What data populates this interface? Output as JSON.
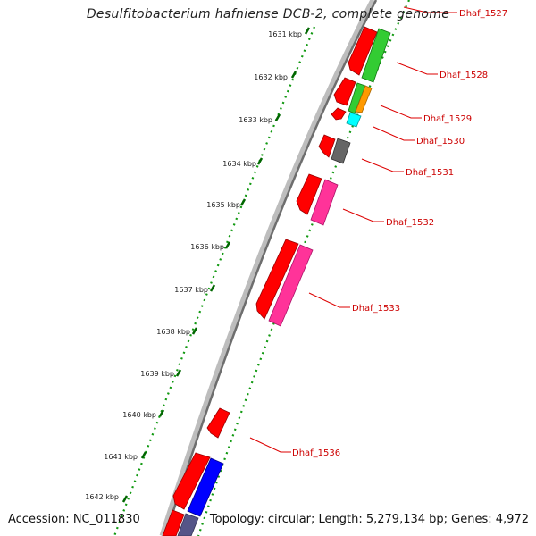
{
  "title": "Desulfitobacterium hafniense DCB-2, complete genome",
  "accession": "Accession: NC_011830",
  "topology": "Topology: circular; Length: 5,279,134 bp; Genes: 4,972",
  "ticks": [
    "1631 kbp",
    "1632 kbp",
    "1633 kbp",
    "1634 kbp",
    "1635 kbp",
    "1636 kbp",
    "1637 kbp",
    "1638 kbp",
    "1639 kbp",
    "1640 kbp",
    "1641 kbp",
    "1642 kbp"
  ],
  "gene_labels": [
    "Dhaf_1527",
    "Dhaf_1528",
    "Dhaf_1529",
    "Dhaf_1530",
    "Dhaf_1531",
    "Dhaf_1532",
    "Dhaf_1533",
    "Dhaf_1536"
  ],
  "colors": {
    "cds": "#ff0000",
    "label": "#cc0000",
    "backbone": "#888888",
    "gc_skew": "#008800",
    "green": "#33cc33",
    "orange": "#ff9900",
    "cyan": "#00ffff",
    "gray": "#666666",
    "pink": "#ff3399",
    "blue": "#0000ff",
    "slate": "#555588"
  }
}
